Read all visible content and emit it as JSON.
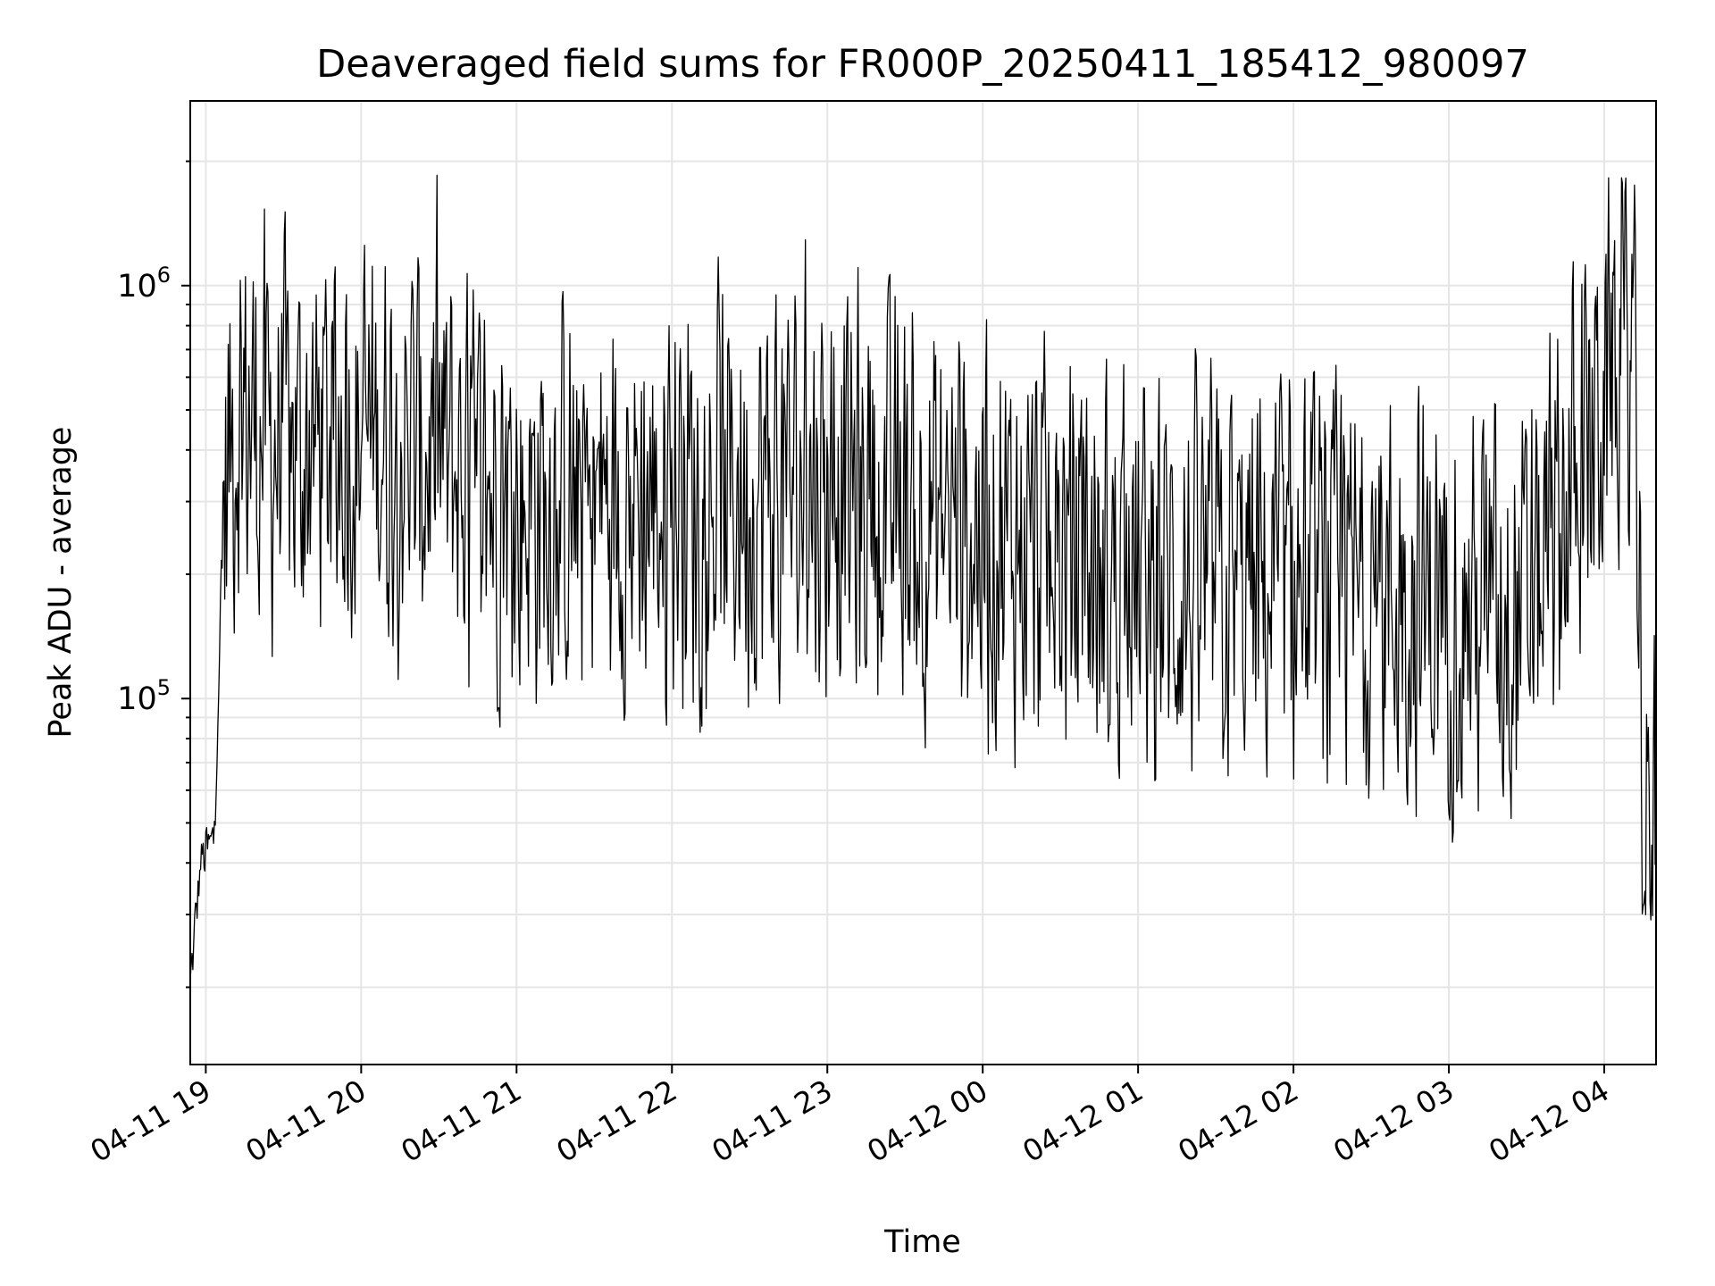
{
  "chart_data": {
    "type": "line",
    "title": "Deaveraged field sums for FR000P_20250411_185412_980097",
    "xlabel": "Time",
    "ylabel": "Peak ADU - average",
    "x_ticks": [
      "04-11 19",
      "04-11 20",
      "04-11 21",
      "04-11 22",
      "04-11 23",
      "04-12 00",
      "04-12 01",
      "04-12 02",
      "04-12 03",
      "04-12 04"
    ],
    "y_ticks": [
      {
        "value": 100000,
        "base": "10",
        "exp": "5"
      },
      {
        "value": 1000000,
        "base": "10",
        "exp": "6"
      }
    ],
    "xlim": [
      "2025-04-11 18:54",
      "2025-04-12 04:20"
    ],
    "ylim": [
      13000,
      2800000
    ],
    "y_scale": "log",
    "grid": true,
    "legend": "none",
    "line_color": "#000000",
    "grid_color": "#e5e5e5",
    "start_time": "2025-04-11 18:54",
    "sample_interval_minutes": 0.33,
    "num_points": 1700,
    "series": [
      {
        "anchors": [
          [
            "2025-04-11 18:54",
            20000
          ],
          [
            "2025-04-11 18:58",
            40000
          ],
          [
            "2025-04-11 19:03",
            45000
          ],
          [
            "2025-04-11 19:07",
            300000
          ],
          [
            "2025-04-11 19:12",
            500000
          ],
          [
            "2025-04-11 19:30",
            400000
          ],
          [
            "2025-04-11 20:00",
            450000
          ],
          [
            "2025-04-11 20:30",
            380000
          ],
          [
            "2025-04-11 21:00",
            300000
          ],
          [
            "2025-04-11 22:00",
            300000
          ],
          [
            "2025-04-11 23:00",
            330000
          ],
          [
            "2025-04-12 00:00",
            250000
          ],
          [
            "2025-04-12 01:00",
            190000
          ],
          [
            "2025-04-12 02:00",
            180000
          ],
          [
            "2025-04-12 03:00",
            170000
          ],
          [
            "2025-04-12 03:30",
            160000
          ],
          [
            "2025-04-12 03:45",
            300000
          ],
          [
            "2025-04-12 04:05",
            650000
          ],
          [
            "2025-04-12 04:12",
            700000
          ],
          [
            "2025-04-12 04:14",
            150000
          ],
          [
            "2025-04-12 04:16",
            45000
          ],
          [
            "2025-04-12 04:20",
            45000
          ]
        ],
        "spread_log10": 0.75,
        "peak_max": 1950000,
        "trough_min": 28000
      }
    ]
  }
}
